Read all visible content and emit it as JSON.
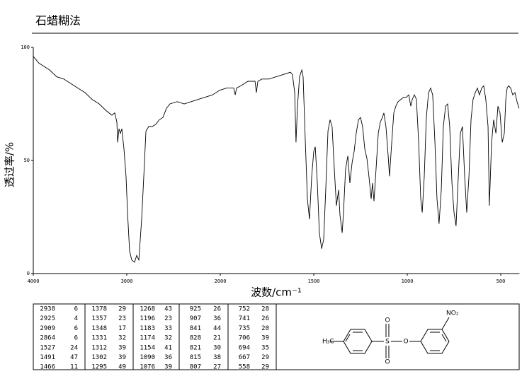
{
  "chart_data": {
    "type": "line",
    "title": "石蜡糊法",
    "xlabel": "波数/cm⁻¹",
    "ylabel": "透过率/%",
    "color": "#000000",
    "xlim": [
      4000,
      400
    ],
    "xticks": [
      4000,
      3000,
      2000,
      1500,
      1000,
      500
    ],
    "ylim": [
      0,
      100
    ],
    "yticks": [
      0,
      50,
      100
    ],
    "x": [
      4000,
      3939,
      3864,
      3826,
      3750,
      3674,
      3598,
      3523,
      3447,
      3371,
      3295,
      3220,
      3159,
      3129,
      3106,
      3098,
      3083,
      3068,
      3053,
      3030,
      3008,
      2992,
      2970,
      2947,
      2917,
      2894,
      2871,
      2841,
      2818,
      2795,
      2765,
      2727,
      2689,
      2652,
      2614,
      2576,
      2538,
      2462,
      2386,
      2311,
      2235,
      2159,
      2083,
      2008,
      1966,
      1928,
      1920,
      1913,
      1890,
      1852,
      1814,
      1807,
      1799,
      1777,
      1739,
      1701,
      1663,
      1625,
      1614,
      1602,
      1595,
      1587,
      1576,
      1564,
      1557,
      1545,
      1534,
      1523,
      1511,
      1500,
      1492,
      1481,
      1470,
      1458,
      1447,
      1436,
      1424,
      1413,
      1402,
      1390,
      1379,
      1367,
      1360,
      1348,
      1341,
      1330,
      1318,
      1307,
      1295,
      1284,
      1273,
      1261,
      1250,
      1239,
      1227,
      1216,
      1205,
      1193,
      1186,
      1178,
      1167,
      1155,
      1144,
      1133,
      1125,
      1114,
      1102,
      1095,
      1083,
      1072,
      1061,
      1049,
      1034,
      1019,
      1004,
      992,
      981,
      973,
      962,
      951,
      939,
      928,
      920,
      909,
      898,
      886,
      875,
      864,
      852,
      841,
      830,
      818,
      807,
      795,
      784,
      773,
      761,
      750,
      739,
      727,
      716,
      705,
      693,
      682,
      670,
      659,
      648,
      636,
      625,
      614,
      602,
      591,
      580,
      568,
      561,
      549,
      538,
      526,
      515,
      504,
      492,
      481,
      473,
      466,
      458,
      447,
      436,
      424,
      413,
      402
    ],
    "values": [
      96,
      93,
      91,
      90,
      87,
      86,
      84,
      82,
      80,
      77,
      75,
      72,
      70,
      71,
      67,
      58,
      64,
      62,
      64,
      55,
      43,
      27,
      10,
      6,
      5,
      8,
      6,
      24,
      43,
      63,
      65,
      65,
      66,
      68,
      69,
      73,
      75,
      76,
      75,
      76,
      77,
      78,
      79,
      81,
      82,
      82,
      79,
      82,
      83,
      85,
      85,
      80,
      85,
      86,
      86,
      87,
      88,
      89,
      88,
      80,
      58,
      74,
      87,
      90,
      87,
      58,
      33,
      24,
      43,
      54,
      56,
      40,
      18,
      11,
      15,
      37,
      63,
      68,
      65,
      46,
      30,
      37,
      26,
      18,
      27,
      46,
      52,
      40,
      49,
      54,
      62,
      68,
      69,
      65,
      55,
      51,
      43,
      33,
      40,
      32,
      46,
      62,
      67,
      69,
      71,
      65,
      52,
      43,
      58,
      71,
      74,
      76,
      77,
      78,
      78,
      79,
      74,
      77,
      79,
      77,
      58,
      33,
      27,
      43,
      69,
      80,
      82,
      79,
      58,
      33,
      22,
      37,
      65,
      74,
      75,
      65,
      40,
      27,
      21,
      43,
      62,
      65,
      43,
      27,
      43,
      68,
      77,
      80,
      82,
      79,
      82,
      83,
      77,
      65,
      30,
      58,
      68,
      62,
      74,
      71,
      58,
      62,
      77,
      82,
      83,
      82,
      79,
      80,
      76,
      73
    ]
  },
  "peak_table": {
    "rows": [
      [
        [
          2938,
          6
        ],
        [
          1378,
          29
        ],
        [
          1268,
          43
        ],
        [
          925,
          26
        ],
        [
          752,
          28
        ]
      ],
      [
        [
          2925,
          4
        ],
        [
          1357,
          23
        ],
        [
          1196,
          23
        ],
        [
          907,
          36
        ],
        [
          741,
          26
        ]
      ],
      [
        [
          2909,
          6
        ],
        [
          1348,
          17
        ],
        [
          1183,
          33
        ],
        [
          841,
          44
        ],
        [
          735,
          20
        ]
      ],
      [
        [
          2864,
          6
        ],
        [
          1331,
          32
        ],
        [
          1174,
          32
        ],
        [
          828,
          21
        ],
        [
          706,
          39
        ]
      ],
      [
        [
          1527,
          24
        ],
        [
          1312,
          39
        ],
        [
          1154,
          41
        ],
        [
          821,
          30
        ],
        [
          694,
          35
        ]
      ],
      [
        [
          1491,
          47
        ],
        [
          1302,
          39
        ],
        [
          1090,
          36
        ],
        [
          815,
          38
        ],
        [
          667,
          29
        ]
      ],
      [
        [
          1466,
          11
        ],
        [
          1295,
          49
        ],
        [
          1076,
          39
        ],
        [
          807,
          27
        ],
        [
          558,
          29
        ]
      ]
    ]
  },
  "structure": {
    "methyl": "H₃C",
    "sulfur": "S",
    "oxygen_top": "O",
    "oxygen_bottom": "O",
    "oxygen_link": "O",
    "nitro": "NO₂"
  }
}
